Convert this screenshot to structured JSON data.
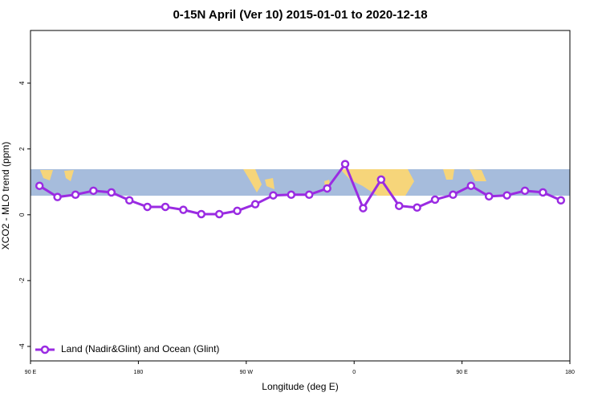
{
  "chart_data": {
    "type": "line",
    "title": "0-15N April (Ver 10)   2015-01-01 to 2020-12-18",
    "xlabel": "Longitude (deg E)",
    "ylabel": "XCO2 - MLO trend (ppm)",
    "x": [
      97.5,
      112.5,
      127.5,
      142.5,
      157.5,
      172.5,
      187.5,
      202.5,
      217.5,
      232.5,
      247.5,
      262.5,
      277.5,
      292.5,
      307.5,
      322.5,
      337.5,
      352.5,
      367.5,
      382.5,
      397.5,
      412.5,
      427.5,
      442.5,
      457.5,
      472.5,
      487.5,
      502.5,
      517.5,
      532.5
    ],
    "series": [
      {
        "name": "Land (Nadir&Glint) and Ocean (Glint)",
        "color": "#9a2be2",
        "values": [
          0.88,
          0.54,
          0.61,
          0.73,
          0.68,
          0.44,
          0.24,
          0.24,
          0.15,
          0.02,
          0.02,
          0.12,
          0.32,
          0.59,
          0.61,
          0.61,
          0.8,
          1.54,
          0.2,
          1.07,
          0.27,
          0.22,
          0.46,
          0.61,
          0.88,
          0.56,
          0.59,
          0.73,
          0.68,
          0.44
        ]
      }
    ],
    "xlim": [
      90,
      540
    ],
    "xticks": [
      {
        "value": 90,
        "label": "90 E"
      },
      {
        "value": 180,
        "label": "180"
      },
      {
        "value": 270,
        "label": "90 W"
      },
      {
        "value": 360,
        "label": "0"
      },
      {
        "value": 450,
        "label": "90 E"
      },
      {
        "value": 540,
        "label": "180"
      }
    ],
    "ylim": [
      -4.44,
      5.6
    ],
    "yticks": [
      -4,
      -2,
      0,
      2,
      4
    ],
    "legend": "bottom-left"
  }
}
